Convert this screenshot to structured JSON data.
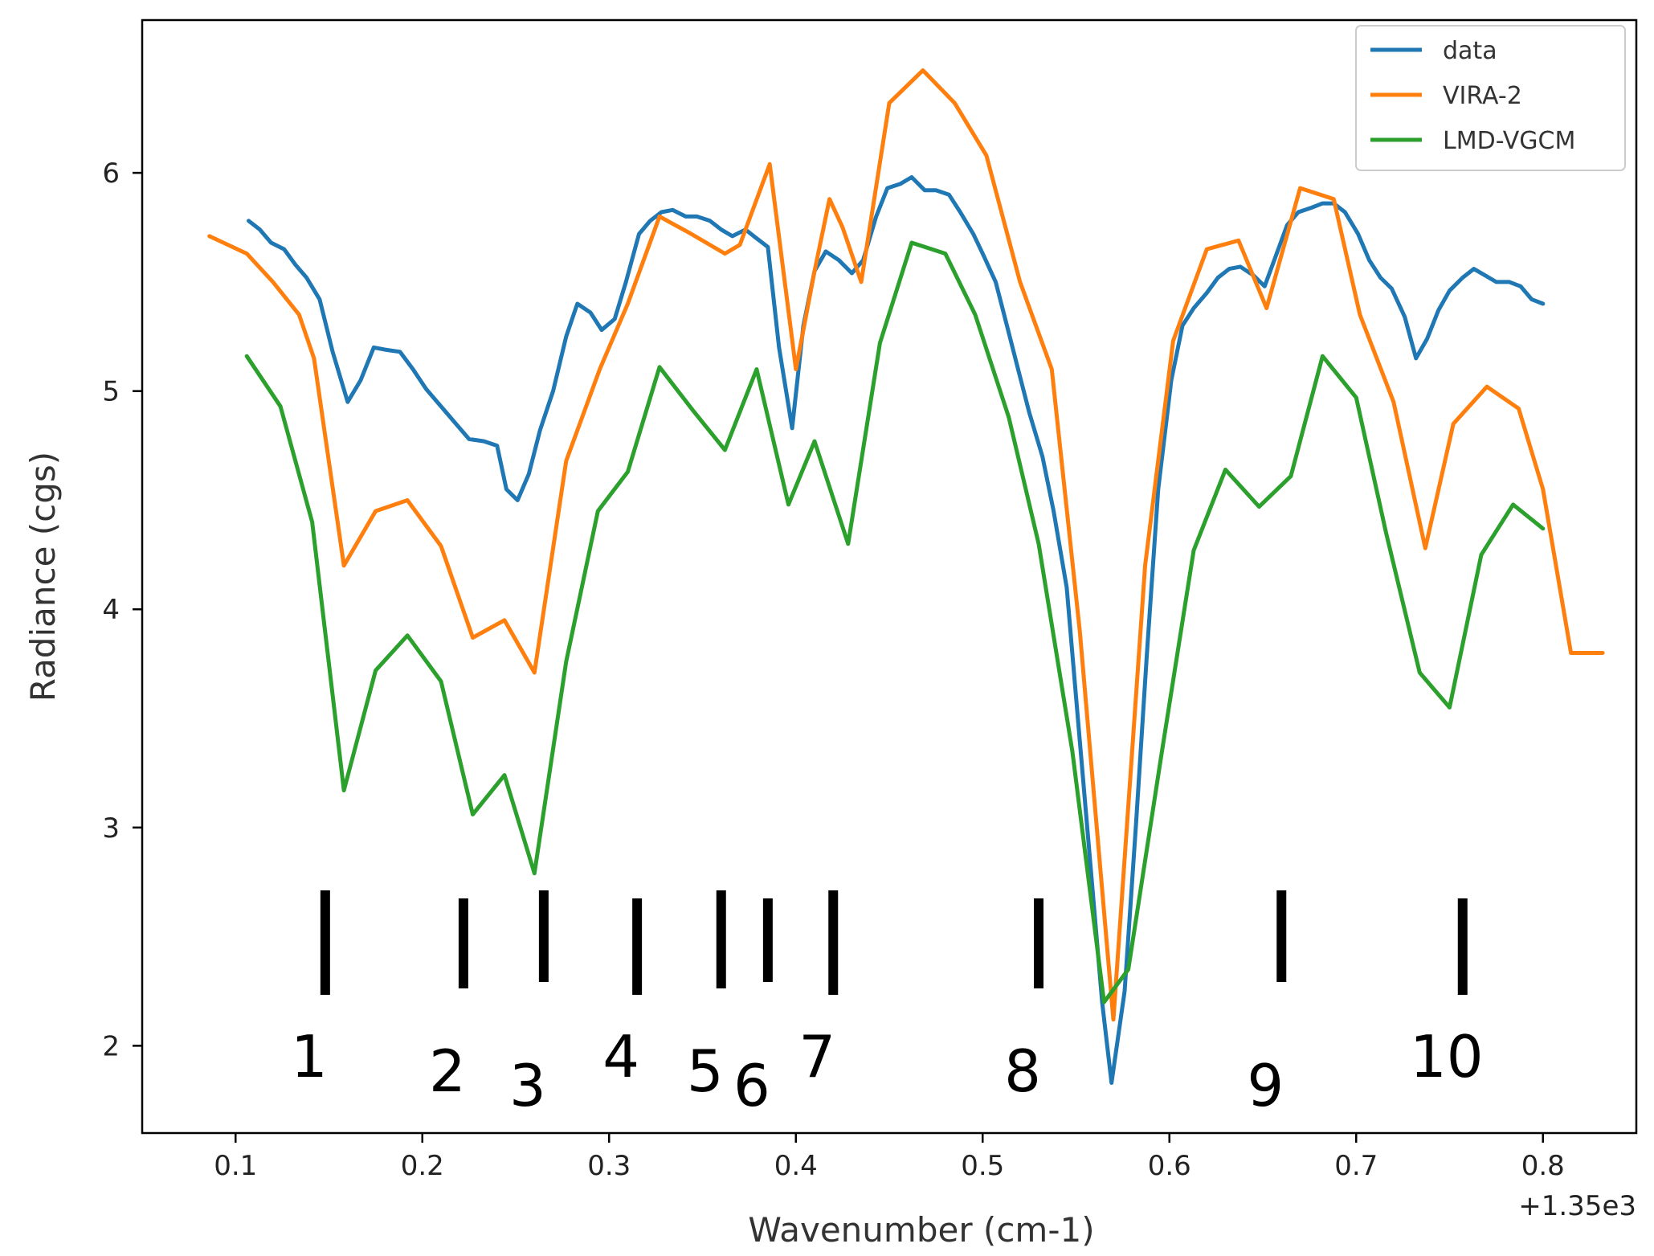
{
  "chart_data": {
    "type": "line",
    "xlabel": "Wavenumber (cm-1)",
    "ylabel": "Radiance (cgs)",
    "offset_text": "+1.35e3",
    "x_offset": 1350,
    "xlim": [
      0.05,
      0.85
    ],
    "ylim": [
      1.6,
      6.7
    ],
    "x_ticks": [
      0.1,
      0.2,
      0.3,
      0.4,
      0.5,
      0.6,
      0.7,
      0.8
    ],
    "x_tick_labels": [
      "0.1",
      "0.2",
      "0.3",
      "0.4",
      "0.5",
      "0.6",
      "0.7",
      "0.8"
    ],
    "y_ticks": [
      2,
      3,
      4,
      5,
      6
    ],
    "y_tick_labels": [
      "2",
      "3",
      "4",
      "5",
      "6"
    ],
    "grid": false,
    "legend_position": "top-right",
    "series": [
      {
        "name": "data",
        "color": "#1f77b4",
        "x": [
          0.107,
          0.113,
          0.119,
          0.126,
          0.132,
          0.138,
          0.145,
          0.152,
          0.16,
          0.167,
          0.174,
          0.18,
          0.188,
          0.195,
          0.202,
          0.21,
          0.217,
          0.225,
          0.233,
          0.24,
          0.245,
          0.251,
          0.257,
          0.263,
          0.27,
          0.277,
          0.283,
          0.29,
          0.296,
          0.303,
          0.309,
          0.316,
          0.322,
          0.328,
          0.334,
          0.341,
          0.347,
          0.354,
          0.36,
          0.366,
          0.373,
          0.379,
          0.385,
          0.391,
          0.398,
          0.404,
          0.41,
          0.416,
          0.423,
          0.43,
          0.436,
          0.443,
          0.449,
          0.456,
          0.462,
          0.469,
          0.475,
          0.482,
          0.488,
          0.495,
          0.5,
          0.507,
          0.513,
          0.519,
          0.525,
          0.532,
          0.538,
          0.545,
          0.551,
          0.557,
          0.564,
          0.569,
          0.576,
          0.582,
          0.588,
          0.594,
          0.601,
          0.607,
          0.613,
          0.62,
          0.626,
          0.632,
          0.638,
          0.645,
          0.651,
          0.657,
          0.663,
          0.669,
          0.676,
          0.682,
          0.688,
          0.694,
          0.701,
          0.707,
          0.713,
          0.719,
          0.726,
          0.732,
          0.738,
          0.744,
          0.75,
          0.757,
          0.763,
          0.769,
          0.775,
          0.782,
          0.788,
          0.794,
          0.8
        ],
        "y": [
          5.78,
          5.74,
          5.68,
          5.65,
          5.58,
          5.52,
          5.42,
          5.18,
          4.95,
          5.05,
          5.2,
          5.19,
          5.18,
          5.1,
          5.01,
          4.93,
          4.86,
          4.78,
          4.77,
          4.75,
          4.55,
          4.5,
          4.62,
          4.82,
          5.0,
          5.25,
          5.4,
          5.36,
          5.28,
          5.33,
          5.5,
          5.72,
          5.78,
          5.82,
          5.83,
          5.8,
          5.8,
          5.78,
          5.74,
          5.71,
          5.74,
          5.7,
          5.66,
          5.2,
          4.83,
          5.3,
          5.55,
          5.64,
          5.6,
          5.54,
          5.6,
          5.8,
          5.93,
          5.95,
          5.98,
          5.92,
          5.92,
          5.9,
          5.82,
          5.72,
          5.63,
          5.5,
          5.3,
          5.1,
          4.9,
          4.7,
          4.45,
          4.1,
          3.5,
          2.9,
          2.2,
          1.83,
          2.25,
          3.0,
          3.8,
          4.55,
          5.05,
          5.3,
          5.38,
          5.45,
          5.52,
          5.56,
          5.57,
          5.53,
          5.48,
          5.62,
          5.76,
          5.82,
          5.84,
          5.86,
          5.86,
          5.82,
          5.72,
          5.6,
          5.52,
          5.47,
          5.34,
          5.15,
          5.24,
          5.37,
          5.46,
          5.52,
          5.56,
          5.53,
          5.5,
          5.5,
          5.48,
          5.42,
          5.4
        ]
      },
      {
        "name": "VIRA-2",
        "color": "#ff7f0e",
        "x": [
          0.086,
          0.106,
          0.12,
          0.134,
          0.142,
          0.158,
          0.175,
          0.192,
          0.21,
          0.227,
          0.244,
          0.26,
          0.277,
          0.295,
          0.31,
          0.327,
          0.344,
          0.362,
          0.37,
          0.386,
          0.4,
          0.41,
          0.418,
          0.425,
          0.435,
          0.45,
          0.468,
          0.485,
          0.502,
          0.52,
          0.537,
          0.552,
          0.57,
          0.587,
          0.602,
          0.62,
          0.637,
          0.652,
          0.67,
          0.688,
          0.702,
          0.72,
          0.737,
          0.752,
          0.77,
          0.787,
          0.8,
          0.815,
          0.832
        ],
        "y": [
          5.71,
          5.63,
          5.5,
          5.35,
          5.15,
          4.2,
          4.45,
          4.5,
          4.29,
          3.87,
          3.95,
          3.71,
          4.68,
          5.1,
          5.4,
          5.8,
          5.72,
          5.63,
          5.67,
          6.04,
          5.1,
          5.55,
          5.88,
          5.75,
          5.5,
          6.32,
          6.47,
          6.32,
          6.08,
          5.5,
          5.1,
          3.9,
          2.12,
          4.2,
          5.23,
          5.65,
          5.69,
          5.38,
          5.93,
          5.88,
          5.35,
          4.95,
          4.28,
          4.85,
          5.02,
          4.92,
          4.55,
          3.8,
          3.8
        ]
      },
      {
        "name": "LMD-VGCM",
        "color": "#2ca02c",
        "x": [
          0.106,
          0.124,
          0.141,
          0.158,
          0.175,
          0.192,
          0.21,
          0.227,
          0.244,
          0.26,
          0.277,
          0.294,
          0.31,
          0.327,
          0.345,
          0.362,
          0.379,
          0.396,
          0.41,
          0.428,
          0.445,
          0.462,
          0.48,
          0.496,
          0.514,
          0.53,
          0.548,
          0.565,
          0.578,
          0.596,
          0.613,
          0.63,
          0.648,
          0.665,
          0.682,
          0.7,
          0.716,
          0.734,
          0.75,
          0.767,
          0.784,
          0.8
        ],
        "y": [
          5.16,
          4.93,
          4.4,
          3.17,
          3.72,
          3.88,
          3.67,
          3.06,
          3.24,
          2.79,
          3.76,
          4.45,
          4.63,
          5.11,
          4.91,
          4.73,
          5.1,
          4.48,
          4.77,
          4.3,
          5.22,
          5.68,
          5.63,
          5.35,
          4.88,
          4.3,
          3.35,
          2.2,
          2.35,
          3.35,
          4.27,
          4.64,
          4.47,
          4.61,
          5.16,
          4.97,
          4.35,
          3.71,
          3.55,
          4.25,
          4.48,
          4.37
        ]
      }
    ],
    "markers": [
      {
        "label": "1",
        "x": 0.148
      },
      {
        "label": "2",
        "x": 0.222
      },
      {
        "label": "3",
        "x": 0.265
      },
      {
        "label": "4",
        "x": 0.315
      },
      {
        "label": "5",
        "x": 0.36
      },
      {
        "label": "6",
        "x": 0.385
      },
      {
        "label": "7",
        "x": 0.42
      },
      {
        "label": "8",
        "x": 0.53
      },
      {
        "label": "9",
        "x": 0.66
      },
      {
        "label": "10",
        "x": 0.757
      }
    ]
  }
}
